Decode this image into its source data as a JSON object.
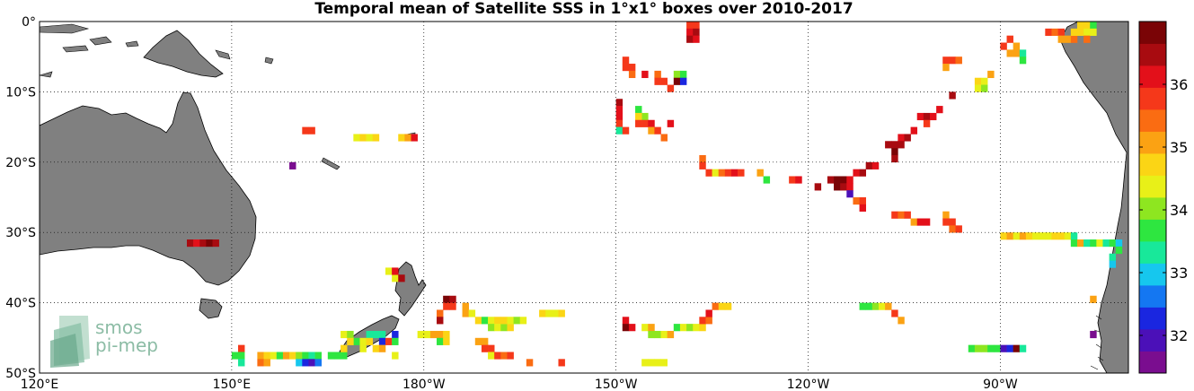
{
  "title": "Temporal mean of Satellite SSS in 1°x1° boxes over 2010-2017",
  "map": {
    "lon_range": [
      120,
      290
    ],
    "lat_range": [
      -50,
      0
    ],
    "lon_ticks": [
      {
        "value": 120,
        "label": "120°E"
      },
      {
        "value": 150,
        "label": "150°E"
      },
      {
        "value": 180,
        "label": "180°W"
      },
      {
        "value": 210,
        "label": "150°W"
      },
      {
        "value": 240,
        "label": "120°W"
      },
      {
        "value": 270,
        "label": "90°W"
      }
    ],
    "lat_ticks": [
      {
        "value": 0,
        "label": "0°"
      },
      {
        "value": -10,
        "label": "10°S"
      },
      {
        "value": -20,
        "label": "20°S"
      },
      {
        "value": -30,
        "label": "30°S"
      },
      {
        "value": -40,
        "label": "40°S"
      },
      {
        "value": -50,
        "label": "50°S"
      }
    ],
    "grid": "dotted",
    "land_color": "#808080"
  },
  "colorbar": {
    "range": [
      31.4,
      37.0
    ],
    "ticks": [
      32,
      33,
      34,
      35,
      36
    ],
    "colors": [
      "#7a0d8f",
      "#4b10b8",
      "#1a26e0",
      "#1477f2",
      "#16c7ee",
      "#18e89a",
      "#2ee640",
      "#8ee620",
      "#e8f018",
      "#fbd515",
      "#fba213",
      "#fa6c12",
      "#f5381a",
      "#e3101a",
      "#a80b10",
      "#7a0406"
    ]
  },
  "logo": {
    "line1": "smos",
    "line2": "pi-mep"
  },
  "chart_data": {
    "type": "heatmap",
    "title": "Temporal mean of Satellite SSS in 1°x1° boxes over 2010-2017",
    "x_axis": "longitude",
    "y_axis": "latitude",
    "value": "SSS",
    "cells": [
      [
        151,
        -47,
        35.8
      ],
      [
        150,
        -48,
        33.6
      ],
      [
        151,
        -48,
        33.6
      ],
      [
        151,
        -49,
        33.2
      ],
      [
        154,
        -48,
        35.2
      ],
      [
        155,
        -48,
        34.6
      ],
      [
        156,
        -48,
        34.2
      ],
      [
        157,
        -48,
        33.8
      ],
      [
        154,
        -49,
        35.4
      ],
      [
        155,
        -49,
        35.0
      ],
      [
        158,
        -48,
        35.0
      ],
      [
        159,
        -48,
        34.6
      ],
      [
        160,
        -48,
        34.0
      ],
      [
        161,
        -48,
        33.6
      ],
      [
        162,
        -48,
        33.4
      ],
      [
        160,
        -49,
        33.0
      ],
      [
        161,
        -49,
        32.4
      ],
      [
        162,
        -49,
        31.8
      ],
      [
        163,
        -48,
        33.6
      ],
      [
        163,
        -49,
        32.6
      ],
      [
        165,
        -48,
        33.6
      ],
      [
        166,
        -48,
        33.6
      ],
      [
        167,
        -48,
        33.8
      ],
      [
        167,
        -45,
        34.4
      ],
      [
        168,
        -45,
        34.0
      ],
      [
        169,
        -46,
        33.8
      ],
      [
        170,
        -46,
        34.2
      ],
      [
        168,
        -46,
        34.6
      ],
      [
        167,
        -47,
        34.8
      ],
      [
        171,
        -45,
        33.4
      ],
      [
        172,
        -45,
        33.2
      ],
      [
        173,
        -45,
        33.2
      ],
      [
        173,
        -46,
        32.4
      ],
      [
        171,
        -46,
        34.6
      ],
      [
        170,
        -47,
        34.4
      ],
      [
        172,
        -47,
        34.8
      ],
      [
        173,
        -47,
        35.0
      ],
      [
        174,
        -46,
        35.8
      ],
      [
        175,
        -45,
        32.2
      ],
      [
        175,
        -46,
        33.6
      ],
      [
        175,
        -48,
        34.4
      ],
      [
        174,
        -36,
        34.4
      ],
      [
        175,
        -37,
        34.4
      ],
      [
        176,
        -37,
        36.6
      ],
      [
        175,
        -36,
        36.0
      ],
      [
        179,
        -45,
        34.4
      ],
      [
        180,
        -45,
        34.4
      ],
      [
        181,
        -45,
        35.2
      ],
      [
        182,
        -45,
        35.0
      ],
      [
        183,
        -45,
        34.8
      ],
      [
        182,
        -42,
        35.4
      ],
      [
        182,
        -43,
        36.6
      ],
      [
        183,
        -40,
        36.8
      ],
      [
        184,
        -40,
        36.4
      ],
      [
        184,
        -41,
        35.8
      ],
      [
        183,
        -41,
        35.6
      ],
      [
        182,
        -46,
        33.6
      ],
      [
        183,
        -46,
        34.6
      ],
      [
        186,
        -41,
        35.0
      ],
      [
        186,
        -42,
        35.2
      ],
      [
        187,
        -42,
        34.4
      ],
      [
        188,
        -43,
        34.6
      ],
      [
        189,
        -43,
        33.8
      ],
      [
        190,
        -43,
        34.2
      ],
      [
        191,
        -43,
        34.6
      ],
      [
        190,
        -44,
        34.0
      ],
      [
        191,
        -44,
        34.4
      ],
      [
        192,
        -44,
        34.0
      ],
      [
        193,
        -44,
        34.8
      ],
      [
        192,
        -43,
        34.6
      ],
      [
        193,
        -43,
        34.2
      ],
      [
        194,
        -43,
        34.0
      ],
      [
        195,
        -43,
        34.4
      ],
      [
        198,
        -42,
        34.6
      ],
      [
        199,
        -42,
        34.2
      ],
      [
        200,
        -42,
        34.4
      ],
      [
        201,
        -42,
        34.8
      ],
      [
        188,
        -46,
        35.2
      ],
      [
        189,
        -46,
        35.0
      ],
      [
        189,
        -47,
        35.6
      ],
      [
        190,
        -47,
        35.6
      ],
      [
        190,
        -48,
        34.2
      ],
      [
        191,
        -48,
        35.8
      ],
      [
        192,
        -48,
        35.4
      ],
      [
        193,
        -48,
        35.6
      ],
      [
        196,
        -49,
        35.4
      ],
      [
        201,
        -49,
        35.8
      ],
      [
        211,
        -43,
        36.0
      ],
      [
        211,
        -44,
        36.8
      ],
      [
        212,
        -44,
        36.2
      ],
      [
        214,
        -44,
        34.2
      ],
      [
        215,
        -44,
        35.0
      ],
      [
        215,
        -45,
        34.0
      ],
      [
        216,
        -45,
        34.0
      ],
      [
        217,
        -45,
        34.4
      ],
      [
        218,
        -45,
        35.0
      ],
      [
        219,
        -44,
        33.8
      ],
      [
        220,
        -44,
        34.2
      ],
      [
        221,
        -44,
        34.0
      ],
      [
        222,
        -44,
        34.4
      ],
      [
        223,
        -44,
        34.6
      ],
      [
        223,
        -43,
        35.6
      ],
      [
        224,
        -43,
        35.4
      ],
      [
        224,
        -42,
        36.0
      ],
      [
        225,
        -41,
        35.4
      ],
      [
        226,
        -41,
        34.8
      ],
      [
        227,
        -41,
        34.6
      ],
      [
        214,
        -49,
        34.4
      ],
      [
        215,
        -49,
        34.2
      ],
      [
        216,
        -49,
        34.2
      ],
      [
        217,
        -49,
        34.2
      ],
      [
        248,
        -41,
        33.8
      ],
      [
        249,
        -41,
        33.6
      ],
      [
        250,
        -41,
        34.0
      ],
      [
        251,
        -41,
        34.2
      ],
      [
        252,
        -41,
        35.0
      ],
      [
        253,
        -42,
        35.6
      ],
      [
        254,
        -43,
        35.2
      ],
      [
        265,
        -47,
        33.6
      ],
      [
        266,
        -47,
        34.0
      ],
      [
        267,
        -47,
        34.0
      ],
      [
        268,
        -47,
        33.8
      ],
      [
        269,
        -47,
        33.8
      ],
      [
        270,
        -47,
        31.8
      ],
      [
        271,
        -47,
        32.2
      ],
      [
        272,
        -47,
        36.8
      ],
      [
        273,
        -47,
        33.4
      ],
      [
        284,
        -40,
        35.0
      ],
      [
        284,
        -45,
        31.6
      ],
      [
        211,
        -6,
        35.6
      ],
      [
        211,
        -7,
        35.8
      ],
      [
        212,
        -7,
        35.6
      ],
      [
        212,
        -8,
        35.4
      ],
      [
        211,
        0,
        35.8
      ],
      [
        214,
        -8,
        36.2
      ],
      [
        216,
        -8,
        35.4
      ],
      [
        216,
        -9,
        35.8
      ],
      [
        217,
        -9,
        35.6
      ],
      [
        218,
        -10,
        35.8
      ],
      [
        219,
        -8,
        34.0
      ],
      [
        220,
        -8,
        33.6
      ],
      [
        219,
        -9,
        36.8
      ],
      [
        220,
        -9,
        32.4
      ],
      [
        221,
        -1,
        35.6
      ],
      [
        222,
        -1,
        35.8
      ],
      [
        221,
        -2,
        36.2
      ],
      [
        222,
        -2,
        36.4
      ],
      [
        221,
        -3,
        36.4
      ],
      [
        222,
        -3,
        36.2
      ],
      [
        210,
        -12,
        36.4
      ],
      [
        210,
        -13,
        36.2
      ],
      [
        210,
        -14,
        36.0
      ],
      [
        210,
        -15,
        35.8
      ],
      [
        210,
        -16,
        33.2
      ],
      [
        211,
        -16,
        35.6
      ],
      [
        213,
        -13,
        33.8
      ],
      [
        214,
        -14,
        34.0
      ],
      [
        213,
        -14,
        34.6
      ],
      [
        213,
        -15,
        35.8
      ],
      [
        214,
        -15,
        35.6
      ],
      [
        215,
        -15,
        36.2
      ],
      [
        215,
        -16,
        35.0
      ],
      [
        216,
        -16,
        35.6
      ],
      [
        217,
        -17,
        35.4
      ],
      [
        218,
        -15,
        36.0
      ],
      [
        161,
        -16,
        35.6
      ],
      [
        162,
        -16,
        35.8
      ],
      [
        169,
        -17,
        34.4
      ],
      [
        170,
        -17,
        34.6
      ],
      [
        171,
        -17,
        34.2
      ],
      [
        172,
        -17,
        34.6
      ],
      [
        176,
        -17,
        34.8
      ],
      [
        177,
        -17,
        35.0
      ],
      [
        178,
        -17,
        36.0
      ],
      [
        159,
        -21,
        31.6
      ],
      [
        143,
        -32,
        36.6
      ],
      [
        144,
        -32,
        36.2
      ],
      [
        145,
        -32,
        36.4
      ],
      [
        146,
        -32,
        36.8
      ],
      [
        147,
        -32,
        36.6
      ],
      [
        223,
        -20,
        35.4
      ],
      [
        223,
        -21,
        35.8
      ],
      [
        224,
        -22,
        35.8
      ],
      [
        225,
        -22,
        34.4
      ],
      [
        226,
        -22,
        35.4
      ],
      [
        227,
        -22,
        35.8
      ],
      [
        228,
        -22,
        36.0
      ],
      [
        229,
        -22,
        35.6
      ],
      [
        232,
        -22,
        35.0
      ],
      [
        233,
        -23,
        33.6
      ],
      [
        237,
        -23,
        35.8
      ],
      [
        238,
        -23,
        36.2
      ],
      [
        241,
        -24,
        36.4
      ],
      [
        243,
        -23,
        36.4
      ],
      [
        244,
        -23,
        36.8
      ],
      [
        245,
        -23,
        36.8
      ],
      [
        246,
        -23,
        36.2
      ],
      [
        244,
        -24,
        36.8
      ],
      [
        245,
        -24,
        36.4
      ],
      [
        246,
        -24,
        36.0
      ],
      [
        247,
        -22,
        36.2
      ],
      [
        248,
        -22,
        36.4
      ],
      [
        249,
        -21,
        36.6
      ],
      [
        250,
        -21,
        36.2
      ],
      [
        246,
        -25,
        31.8
      ],
      [
        247,
        -26,
        35.4
      ],
      [
        248,
        -26,
        35.6
      ],
      [
        248,
        -27,
        36.0
      ],
      [
        252,
        -18,
        36.4
      ],
      [
        253,
        -18,
        36.6
      ],
      [
        253,
        -19,
        36.8
      ],
      [
        253,
        -20,
        36.4
      ],
      [
        254,
        -17,
        36.2
      ],
      [
        254,
        -18,
        36.4
      ],
      [
        255,
        -17,
        36.6
      ],
      [
        256,
        -16,
        36.2
      ],
      [
        257,
        -14,
        36.0
      ],
      [
        258,
        -14,
        36.4
      ],
      [
        258,
        -15,
        35.6
      ],
      [
        259,
        -14,
        36.2
      ],
      [
        260,
        -13,
        36.0
      ],
      [
        262,
        -11,
        36.4
      ],
      [
        253,
        -28,
        35.6
      ],
      [
        254,
        -28,
        35.4
      ],
      [
        255,
        -28,
        35.8
      ],
      [
        256,
        -29,
        35.2
      ],
      [
        257,
        -29,
        36.2
      ],
      [
        258,
        -29,
        36.0
      ],
      [
        261,
        -28,
        35.0
      ],
      [
        261,
        -29,
        35.6
      ],
      [
        262,
        -29,
        35.8
      ],
      [
        262,
        -30,
        35.4
      ],
      [
        263,
        -30,
        35.8
      ],
      [
        261,
        -6,
        35.6
      ],
      [
        262,
        -6,
        35.8
      ],
      [
        263,
        -6,
        35.4
      ],
      [
        261,
        -7,
        35.2
      ],
      [
        266,
        -9,
        34.6
      ],
      [
        267,
        -9,
        34.2
      ],
      [
        266,
        -10,
        34.4
      ],
      [
        267,
        -10,
        34.0
      ],
      [
        268,
        -8,
        35.0
      ],
      [
        270,
        -4,
        35.8
      ],
      [
        271,
        -3,
        35.6
      ],
      [
        272,
        -4,
        35.0
      ],
      [
        271,
        -5,
        35.0
      ],
      [
        272,
        -5,
        35.2
      ],
      [
        273,
        -5,
        33.4
      ],
      [
        273,
        -6,
        33.6
      ],
      [
        270,
        -31,
        34.8
      ],
      [
        271,
        -31,
        35.0
      ],
      [
        272,
        -31,
        34.4
      ],
      [
        273,
        -31,
        35.0
      ],
      [
        274,
        -31,
        34.6
      ],
      [
        275,
        -31,
        34.4
      ],
      [
        276,
        -31,
        34.4
      ],
      [
        277,
        -31,
        34.2
      ],
      [
        278,
        -31,
        34.6
      ],
      [
        279,
        -31,
        34.6
      ],
      [
        280,
        -31,
        34.4
      ],
      [
        281,
        -31,
        33.4
      ],
      [
        281,
        -32,
        33.8
      ],
      [
        282,
        -32,
        35.0
      ],
      [
        283,
        -32,
        33.4
      ],
      [
        284,
        -32,
        33.8
      ],
      [
        285,
        -32,
        34.2
      ],
      [
        286,
        -32,
        33.2
      ],
      [
        287,
        -32,
        33.6
      ],
      [
        288,
        -32,
        33.0
      ],
      [
        288,
        -33,
        33.8
      ],
      [
        287,
        -34,
        33.4
      ],
      [
        287,
        -35,
        33.0
      ],
      [
        277,
        -2,
        35.8
      ],
      [
        278,
        -2,
        35.4
      ],
      [
        279,
        -2,
        35.6
      ],
      [
        279,
        -3,
        35.0
      ],
      [
        280,
        -3,
        35.2
      ],
      [
        281,
        -3,
        35.4
      ],
      [
        281,
        -2,
        34.6
      ],
      [
        282,
        -2,
        34.8
      ],
      [
        283,
        -1,
        34.6
      ],
      [
        282,
        -1,
        34.8
      ],
      [
        283,
        -2,
        34.4
      ],
      [
        277,
        0,
        35.0
      ],
      [
        282,
        0,
        35.2
      ],
      [
        283,
        0,
        34.8
      ],
      [
        284,
        -1,
        33.6
      ],
      [
        283,
        -3,
        35.4
      ],
      [
        284,
        -2,
        34.2
      ]
    ]
  }
}
